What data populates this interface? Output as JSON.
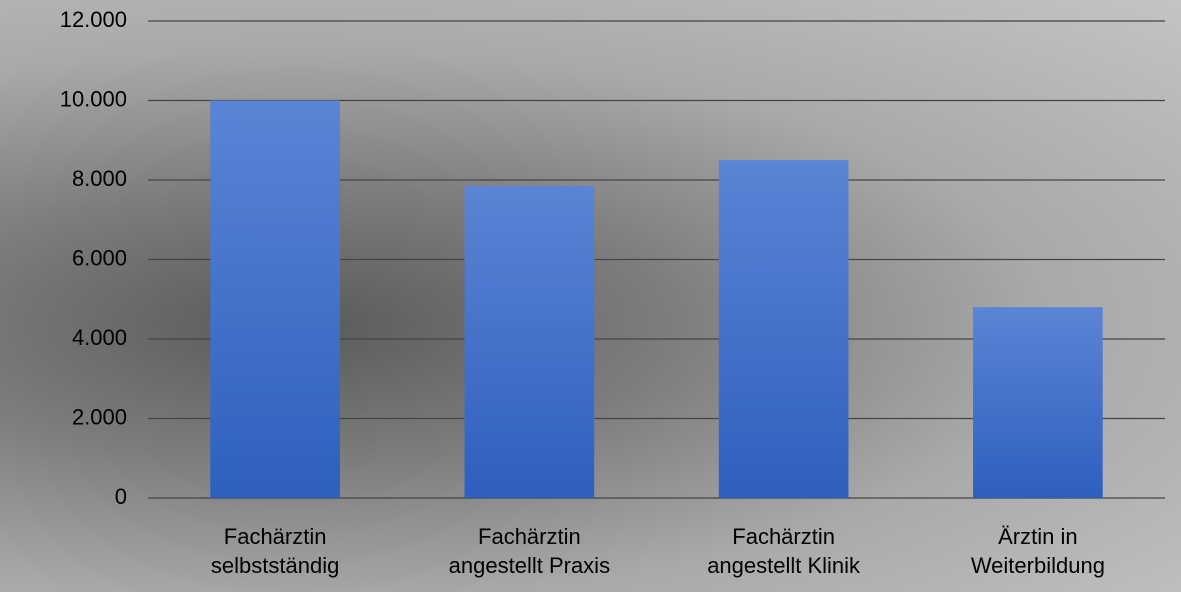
{
  "chart_data": {
    "type": "bar",
    "categories": [
      "Fachärztin\nselbstständig",
      "Fachärztin\nangestellt Praxis",
      "Fachärztin\nangestellt Klinik",
      "Ärztin in\nWeiterbildung"
    ],
    "values": [
      10000,
      7850,
      8500,
      4800
    ],
    "color": "#4472c4",
    "ylim": [
      0,
      12000
    ],
    "yticks": [
      0,
      {
        "value": 2000,
        "label": "2.000"
      },
      {
        "value": 4000,
        "label": "4.000"
      },
      {
        "value": 6000,
        "label": "6.000"
      },
      {
        "value": 8000,
        "label": "8.000"
      },
      {
        "value": 10000,
        "label": "10.000"
      },
      {
        "value": 12000,
        "label": "12.000"
      }
    ],
    "grid": true
  }
}
